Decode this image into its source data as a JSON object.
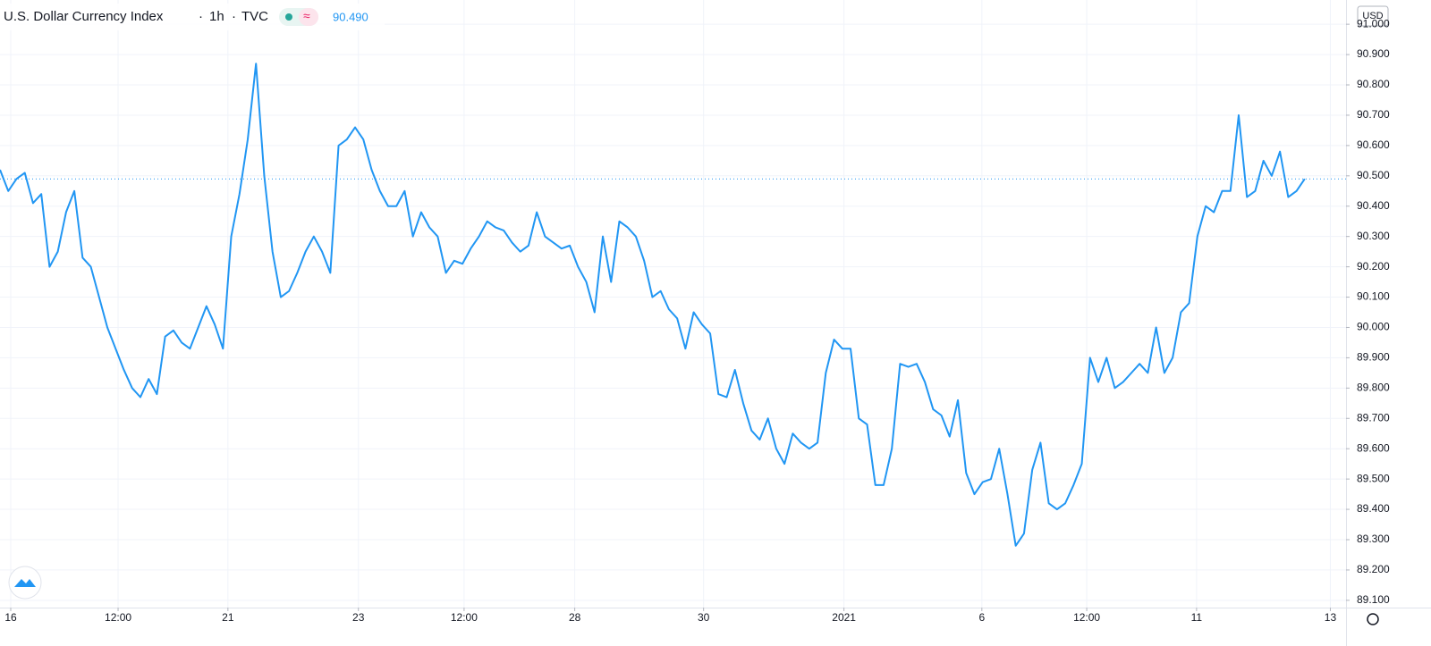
{
  "chart_data": {
    "type": "line",
    "title": "U.S. Dollar Currency Index",
    "interval": "1h",
    "source": "TVC",
    "current_value": 90.49,
    "current_label": "90.490",
    "currency": "USD",
    "color": "#2196f3",
    "grid": true,
    "x": [
      0,
      1,
      2,
      3,
      4,
      5,
      6,
      7,
      8,
      9,
      10,
      11,
      12,
      13,
      14,
      15,
      16,
      17,
      18,
      19,
      20,
      21,
      22,
      23,
      24,
      25,
      26,
      27,
      28,
      29,
      30,
      31,
      32,
      33,
      34,
      35,
      36,
      37,
      38,
      39,
      40,
      41,
      42,
      43,
      44,
      45,
      46,
      47,
      48,
      49,
      50,
      51,
      52,
      53,
      54,
      55,
      56,
      57,
      58,
      59,
      60,
      61,
      62,
      63,
      64,
      65,
      66,
      67,
      68,
      69,
      70,
      71,
      72,
      73,
      74,
      75,
      76,
      77,
      78,
      79,
      80,
      81,
      82,
      83,
      84,
      85,
      86,
      87,
      88,
      89,
      90,
      91,
      92,
      93,
      94,
      95,
      96,
      97,
      98,
      99,
      100,
      101,
      102,
      103,
      104,
      105,
      106,
      107,
      108,
      109,
      110,
      111,
      112,
      113,
      114,
      115,
      116,
      117,
      118,
      119,
      120,
      121,
      122,
      123,
      124,
      125,
      126,
      127,
      128,
      129,
      130,
      131,
      132,
      133,
      134,
      135,
      136,
      137,
      138,
      139,
      140,
      141,
      142,
      143,
      144,
      145,
      146,
      147,
      148,
      149,
      150,
      151,
      152,
      153,
      154,
      155,
      156,
      157,
      158
    ],
    "values": [
      90.52,
      90.45,
      90.49,
      90.51,
      90.41,
      90.44,
      90.2,
      90.25,
      90.38,
      90.45,
      90.23,
      90.2,
      90.1,
      90.0,
      89.93,
      89.86,
      89.8,
      89.77,
      89.83,
      89.78,
      89.97,
      89.99,
      89.95,
      89.93,
      90.0,
      90.07,
      90.01,
      89.93,
      90.3,
      90.44,
      90.62,
      90.87,
      90.5,
      90.25,
      90.1,
      90.12,
      90.18,
      90.25,
      90.3,
      90.25,
      90.18,
      90.6,
      90.62,
      90.66,
      90.62,
      90.52,
      90.45,
      90.4,
      90.4,
      90.45,
      90.3,
      90.38,
      90.33,
      90.3,
      90.18,
      90.22,
      90.21,
      90.26,
      90.3,
      90.35,
      90.33,
      90.32,
      90.28,
      90.25,
      90.27,
      90.38,
      90.3,
      90.28,
      90.26,
      90.27,
      90.2,
      90.15,
      90.05,
      90.3,
      90.15,
      90.35,
      90.33,
      90.3,
      90.22,
      90.1,
      90.12,
      90.06,
      90.03,
      89.93,
      90.05,
      90.01,
      89.98,
      89.78,
      89.77,
      89.86,
      89.75,
      89.66,
      89.63,
      89.7,
      89.6,
      89.55,
      89.65,
      89.62,
      89.6,
      89.62,
      89.85,
      89.96,
      89.93,
      89.93,
      89.7,
      89.68,
      89.48,
      89.48,
      89.6,
      89.88,
      89.87,
      89.88,
      89.82,
      89.73,
      89.71,
      89.64,
      89.76,
      89.52,
      89.45,
      89.49,
      89.5,
      89.6,
      89.45,
      89.28,
      89.32,
      89.53,
      89.62,
      89.42,
      89.4,
      89.42,
      89.48,
      89.55,
      89.9,
      89.82,
      89.9,
      89.8,
      89.82,
      89.85,
      89.88,
      89.85,
      90.0,
      89.85,
      89.9,
      90.05,
      90.08,
      90.3,
      90.4,
      90.38,
      90.45,
      90.45,
      90.7,
      90.43,
      90.45,
      90.55,
      90.5,
      90.58,
      90.43,
      90.45,
      90.49
    ],
    "xlim": [
      0,
      163
    ],
    "xticks": [
      {
        "value": 1.3,
        "label": "16"
      },
      {
        "value": 14.3,
        "label": "12:00"
      },
      {
        "value": 27.6,
        "label": "21"
      },
      {
        "value": 43.4,
        "label": "23"
      },
      {
        "value": 56.2,
        "label": "12:00"
      },
      {
        "value": 69.6,
        "label": "28"
      },
      {
        "value": 85.2,
        "label": "30"
      },
      {
        "value": 102.2,
        "label": "2021"
      },
      {
        "value": 118.9,
        "label": "6"
      },
      {
        "value": 131.6,
        "label": "12:00"
      },
      {
        "value": 144.9,
        "label": "11"
      },
      {
        "value": 161.1,
        "label": "13"
      }
    ],
    "ylim": [
      89.076,
      91.08
    ],
    "yticks": [
      {
        "value": 89.1,
        "label": "89.100"
      },
      {
        "value": 89.2,
        "label": "89.200"
      },
      {
        "value": 89.3,
        "label": "89.300"
      },
      {
        "value": 89.4,
        "label": "89.400"
      },
      {
        "value": 89.5,
        "label": "89.500"
      },
      {
        "value": 89.6,
        "label": "89.600"
      },
      {
        "value": 89.7,
        "label": "89.700"
      },
      {
        "value": 89.8,
        "label": "89.800"
      },
      {
        "value": 89.9,
        "label": "89.900"
      },
      {
        "value": 90.0,
        "label": "90.000"
      },
      {
        "value": 90.1,
        "label": "90.100"
      },
      {
        "value": 90.2,
        "label": "90.200"
      },
      {
        "value": 90.3,
        "label": "90.300"
      },
      {
        "value": 90.4,
        "label": "90.400"
      },
      {
        "value": 90.5,
        "label": "90.500"
      },
      {
        "value": 90.6,
        "label": "90.600"
      },
      {
        "value": 90.7,
        "label": "90.700"
      },
      {
        "value": 90.8,
        "label": "90.800"
      },
      {
        "value": 90.9,
        "label": "90.900"
      },
      {
        "value": 91.0,
        "label": "91.000"
      }
    ]
  }
}
